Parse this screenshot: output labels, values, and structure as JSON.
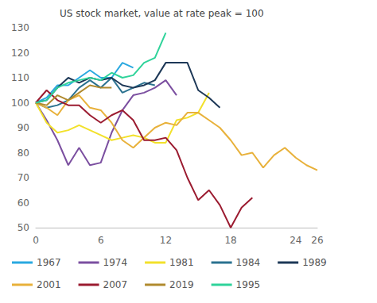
{
  "chart_data": {
    "type": "line",
    "title": "US stock market, value at rate peak = 100",
    "x": [
      0,
      1,
      2,
      3,
      4,
      5,
      6,
      7,
      8,
      9,
      10,
      11,
      12,
      13,
      14,
      15,
      16,
      17,
      18,
      19,
      20,
      21,
      22,
      23,
      24,
      25,
      26
    ],
    "xlim": [
      0,
      26
    ],
    "xticks": [
      0,
      6,
      12,
      18,
      24
    ],
    "ylim": [
      50,
      130
    ],
    "yticks": [
      50,
      60,
      70,
      80,
      90,
      100,
      110,
      120,
      130
    ],
    "grid": false,
    "legend": "bottom",
    "series": [
      {
        "name": "1967",
        "color": "#29a8e0",
        "values": [
          100,
          102,
          107,
          107,
          110,
          113,
          110,
          110,
          116,
          114,
          null,
          null,
          null,
          null,
          null,
          null,
          null,
          null,
          null,
          null,
          null,
          null,
          null,
          null,
          null,
          null,
          null
        ]
      },
      {
        "name": "1974",
        "color": "#7b4fa0",
        "values": [
          100,
          93,
          85,
          75,
          82,
          75,
          76,
          88,
          97,
          103,
          104,
          106,
          109,
          103,
          null,
          null,
          null,
          null,
          null,
          null,
          null,
          null,
          null,
          null,
          null,
          null,
          null
        ]
      },
      {
        "name": "1981",
        "color": "#f2e12b",
        "values": [
          100,
          92,
          88,
          89,
          91,
          89,
          87,
          85,
          86,
          87,
          86,
          84,
          84,
          93,
          94,
          96,
          104,
          null,
          null,
          null,
          null,
          null,
          null,
          null,
          null,
          null,
          null
        ]
      },
      {
        "name": "1984",
        "color": "#2b7290",
        "values": [
          100,
          98,
          99,
          101,
          106,
          109,
          106,
          110,
          104,
          106,
          108,
          107,
          null,
          null,
          null,
          null,
          null,
          null,
          null,
          null,
          null,
          null,
          null,
          null,
          null,
          null,
          null
        ]
      },
      {
        "name": "1989",
        "color": "#1d3857",
        "values": [
          100,
          101,
          106,
          110,
          108,
          110,
          109,
          110,
          107,
          106,
          107,
          109,
          116,
          116,
          116,
          105,
          102,
          98,
          null,
          null,
          null,
          null,
          null,
          null,
          null,
          null,
          null
        ]
      },
      {
        "name": "2001",
        "color": "#e8b13a",
        "values": [
          100,
          98,
          95,
          101,
          103,
          98,
          97,
          92,
          85,
          82,
          86,
          90,
          92,
          91,
          96,
          96,
          93,
          90,
          85,
          79,
          80,
          74,
          79,
          82,
          78,
          75,
          73
        ]
      },
      {
        "name": "2007",
        "color": "#9b1b30",
        "values": [
          100,
          105,
          101,
          99,
          99,
          95,
          92,
          95,
          97,
          93,
          85,
          85,
          86,
          81,
          70,
          61,
          65,
          59,
          50,
          58,
          62,
          null,
          null,
          null,
          null,
          null,
          null
        ]
      },
      {
        "name": "2019",
        "color": "#b08a2e",
        "values": [
          100,
          99,
          103,
          101,
          104,
          107,
          106,
          106,
          null,
          null,
          null,
          null,
          null,
          null,
          null,
          null,
          null,
          null,
          null,
          null,
          null,
          null,
          null,
          null,
          null,
          null,
          null
        ]
      },
      {
        "name": "1995",
        "color": "#2fd39a",
        "values": [
          100,
          101,
          106,
          108,
          109,
          110,
          109,
          112,
          110,
          111,
          116,
          118,
          128,
          null,
          null,
          null,
          null,
          null,
          null,
          null,
          null,
          null,
          null,
          null,
          null,
          null,
          null
        ]
      }
    ]
  }
}
